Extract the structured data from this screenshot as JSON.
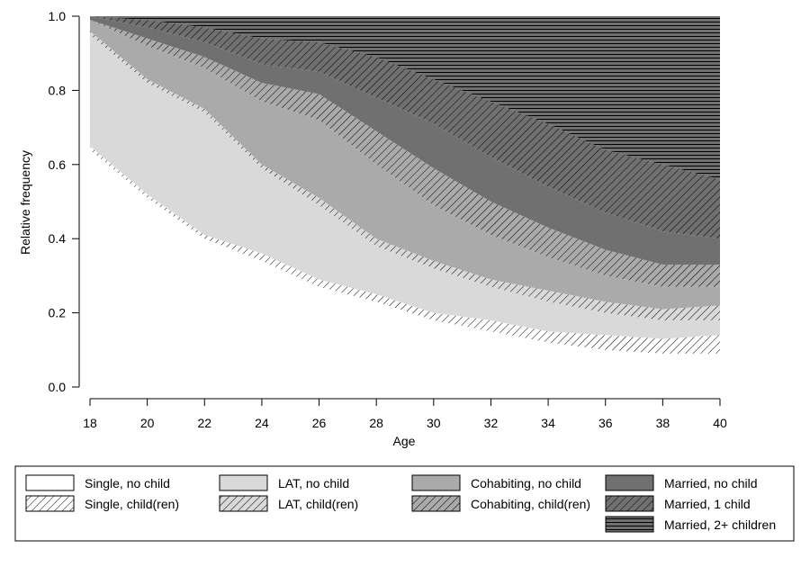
{
  "chart_data": {
    "type": "area",
    "stacked": true,
    "xlabel": "Age",
    "ylabel": "Relative frequency",
    "xlim": [
      18,
      40
    ],
    "ylim": [
      0,
      1
    ],
    "x_ticks": [
      "18",
      "20",
      "22",
      "24",
      "26",
      "28",
      "30",
      "32",
      "34",
      "36",
      "38",
      "40"
    ],
    "y_ticks": [
      "0.0",
      "0.2",
      "0.4",
      "0.6",
      "0.8",
      "1.0"
    ],
    "legend_position": "bottom",
    "x": [
      18,
      20,
      22,
      24,
      26,
      28,
      30,
      32,
      34,
      36,
      38,
      40
    ],
    "series": [
      {
        "name": "Single, no child",
        "fill": "#ffffff",
        "pattern": "none",
        "values": [
          0.64,
          0.51,
          0.4,
          0.34,
          0.27,
          0.23,
          0.18,
          0.15,
          0.12,
          0.1,
          0.09,
          0.09
        ]
      },
      {
        "name": "Single, child(ren)",
        "fill": "#ffffff",
        "pattern": "diag",
        "values": [
          0.01,
          0.01,
          0.01,
          0.02,
          0.02,
          0.02,
          0.02,
          0.03,
          0.03,
          0.04,
          0.04,
          0.05
        ]
      },
      {
        "name": "LAT, no child",
        "fill": "#d9d9d9",
        "pattern": "none",
        "values": [
          0.3,
          0.3,
          0.33,
          0.23,
          0.2,
          0.13,
          0.12,
          0.09,
          0.08,
          0.06,
          0.05,
          0.04
        ]
      },
      {
        "name": "LAT, child(ren)",
        "fill": "#d9d9d9",
        "pattern": "diag",
        "values": [
          0.01,
          0.01,
          0.01,
          0.01,
          0.02,
          0.02,
          0.02,
          0.02,
          0.03,
          0.03,
          0.03,
          0.04
        ]
      },
      {
        "name": "Cohabiting, no child",
        "fill": "#aaaaaa",
        "pattern": "none",
        "values": [
          0.03,
          0.09,
          0.11,
          0.17,
          0.21,
          0.2,
          0.15,
          0.12,
          0.09,
          0.07,
          0.06,
          0.05
        ]
      },
      {
        "name": "Cohabiting, child(ren)",
        "fill": "#aaaaaa",
        "pattern": "diag",
        "values": [
          0.0,
          0.02,
          0.03,
          0.05,
          0.07,
          0.09,
          0.1,
          0.09,
          0.08,
          0.07,
          0.06,
          0.06
        ]
      },
      {
        "name": "Married, no child",
        "fill": "#707070",
        "pattern": "none",
        "values": [
          0.01,
          0.03,
          0.04,
          0.05,
          0.06,
          0.09,
          0.12,
          0.12,
          0.11,
          0.1,
          0.09,
          0.07
        ]
      },
      {
        "name": "Married, 1 child",
        "fill": "#707070",
        "pattern": "diag",
        "values": [
          0.0,
          0.02,
          0.04,
          0.07,
          0.08,
          0.11,
          0.12,
          0.15,
          0.17,
          0.17,
          0.18,
          0.16
        ]
      },
      {
        "name": "Married, 2+ children",
        "fill": "#707070",
        "pattern": "horiz",
        "values": [
          0.0,
          0.01,
          0.03,
          0.06,
          0.07,
          0.11,
          0.17,
          0.23,
          0.29,
          0.36,
          0.4,
          0.44
        ]
      }
    ],
    "legend_columns": [
      [
        "Single, no child",
        "Single, child(ren)"
      ],
      [
        "LAT, no child",
        "LAT, child(ren)"
      ],
      [
        "Cohabiting, no child",
        "Cohabiting, child(ren)"
      ],
      [
        "Married, no child",
        "Married, 1 child",
        "Married, 2+ children"
      ]
    ]
  }
}
